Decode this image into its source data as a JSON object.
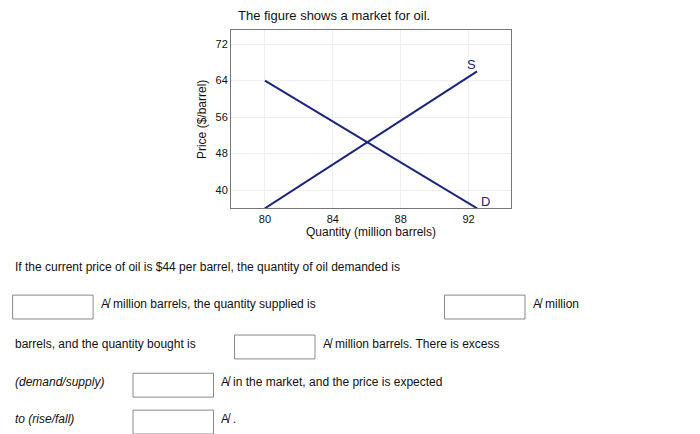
{
  "chart_data": {
    "type": "line",
    "title": "The figure shows a market for oil.",
    "xlabel": "Quantity (million barrels)",
    "ylabel": "Price ($/barrel)",
    "color": "#1a237e",
    "xlim": [
      78,
      94.5
    ],
    "ylim": [
      36,
      75
    ],
    "xticks": [
      80,
      84,
      88,
      92
    ],
    "yticks": [
      40,
      48,
      56,
      64,
      72
    ],
    "grid": true,
    "series": [
      {
        "x": [
          80,
          92.5
        ],
        "values": [
          64,
          36
        ]
      },
      {
        "x": [
          80,
          92.5
        ],
        "values": [
          36,
          66
        ]
      }
    ],
    "annotations": [
      {
        "text": "D",
        "x": 92.6,
        "y": 37.5
      },
      {
        "text": "S",
        "x": 91.8,
        "y": 67.5
      },
      {
        "text": "If the current price of oil is $44 per barrel, the quantity of oil demanded is"
      },
      {
        "text": "A̸"
      },
      {
        "text": "million barrels, the quantity supplied is"
      },
      {
        "text": "A̸"
      },
      {
        "text": "million"
      },
      {
        "text": "barrels, and the quantity bought is"
      },
      {
        "text": "A̸"
      },
      {
        "text": "million barrels. There is excess"
      },
      {
        "text": "(demand/supply)"
      },
      {
        "text": "A̸"
      },
      {
        "text": "in the market, and the price is expected"
      },
      {
        "text": "to (rise/fall)"
      },
      {
        "text": "A̸"
      },
      {
        "text": "."
      }
    ]
  }
}
